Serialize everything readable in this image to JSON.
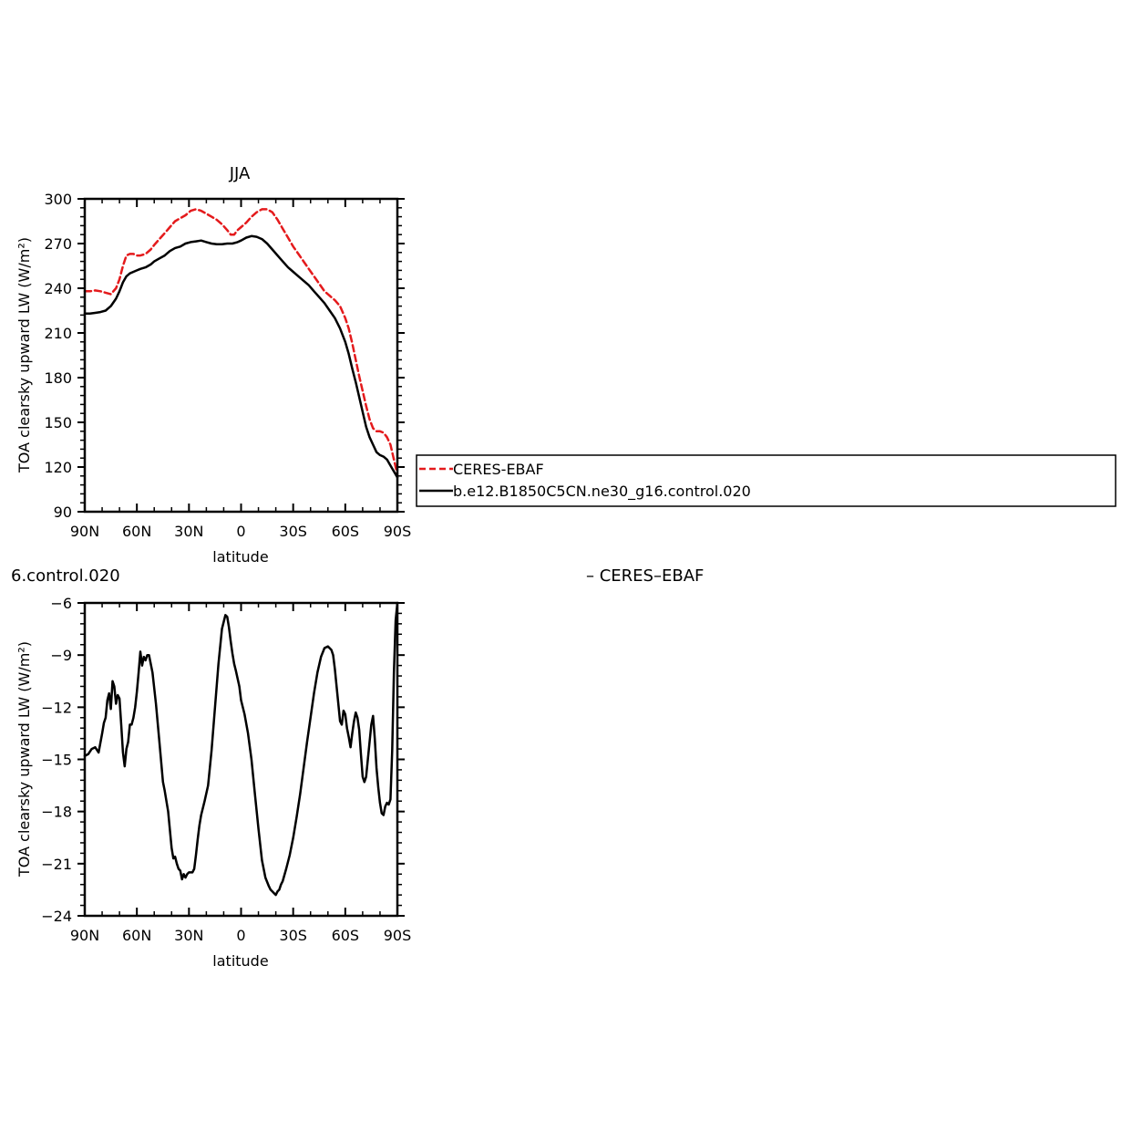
{
  "chart_data": [
    {
      "type": "line",
      "title": "JJA",
      "xlabel": "latitude",
      "ylabel": "TOA clearsky upward LW (W/m²)",
      "xlim": [
        90,
        -90
      ],
      "ylim": [
        90,
        300
      ],
      "x_ticks": [
        90,
        60,
        30,
        0,
        -30,
        -60,
        -90
      ],
      "x_tick_labels": [
        "90N",
        "60N",
        "30N",
        "0",
        "30S",
        "60S",
        "90S"
      ],
      "y_ticks": [
        90,
        120,
        150,
        180,
        210,
        240,
        270,
        300
      ],
      "y_tick_labels": [
        "90",
        "120",
        "150",
        "180",
        "210",
        "240",
        "270",
        "300"
      ],
      "legend": {
        "placement": "right",
        "entries": [
          {
            "label": "CERES-EBAF",
            "color": "#e41a1c",
            "dash": "dashed"
          },
          {
            "label": "b.e12.B1850C5CN.ne30_g16.control.020",
            "color": "#000000",
            "dash": "solid"
          }
        ]
      },
      "series": [
        {
          "name": "CERES-EBAF",
          "color": "#e41a1c",
          "dash": "dashed",
          "x": [
            90,
            87,
            84,
            81,
            78,
            75,
            72,
            70,
            68,
            66,
            64,
            62,
            60,
            58,
            55,
            52,
            50,
            47,
            44,
            41,
            38,
            35,
            32,
            29,
            26,
            23,
            20,
            17,
            14,
            11,
            8,
            6,
            4,
            2,
            0,
            -3,
            -6,
            -9,
            -12,
            -15,
            -18,
            -21,
            -24,
            -27,
            -30,
            -33,
            -36,
            -39,
            -42,
            -45,
            -48,
            -51,
            -54,
            -57,
            -60,
            -62,
            -64,
            -66,
            -68,
            -70,
            -72,
            -74,
            -76,
            -78,
            -80,
            -82,
            -84,
            -86,
            -88,
            -90
          ],
          "values": [
            238,
            238,
            238.5,
            238,
            237,
            236,
            240,
            246,
            255,
            262,
            263,
            263,
            262,
            262,
            263,
            266,
            269,
            273,
            277,
            281,
            285,
            287,
            289,
            292,
            293,
            292,
            290,
            288,
            286,
            283,
            279,
            276,
            276,
            279,
            281,
            284,
            288,
            291,
            293,
            293,
            291,
            286,
            280,
            274,
            268,
            263,
            258,
            253,
            248,
            243,
            238,
            235,
            232,
            228,
            220,
            213,
            203,
            192,
            181,
            171,
            161,
            152,
            146,
            144,
            144,
            143,
            140,
            135,
            125,
            115
          ]
        },
        {
          "name": "b.e12.B1850C5CN.ne30_g16.control.020",
          "color": "#000000",
          "dash": "solid",
          "x": [
            90,
            87,
            84,
            81,
            78,
            75,
            72,
            70,
            68,
            66,
            64,
            62,
            60,
            58,
            55,
            52,
            50,
            47,
            44,
            41,
            38,
            35,
            32,
            29,
            26,
            23,
            20,
            17,
            14,
            11,
            8,
            5,
            2,
            0,
            -3,
            -6,
            -9,
            -12,
            -15,
            -18,
            -21,
            -24,
            -27,
            -30,
            -33,
            -36,
            -39,
            -42,
            -45,
            -48,
            -51,
            -54,
            -57,
            -60,
            -62,
            -64,
            -66,
            -68,
            -70,
            -72,
            -74,
            -76,
            -78,
            -80,
            -82,
            -84,
            -86,
            -88,
            -90
          ],
          "values": [
            223,
            223,
            223.5,
            224,
            225,
            228,
            233,
            238,
            244,
            248,
            250,
            251,
            252,
            253,
            254,
            256,
            258,
            260,
            262,
            265,
            267,
            268,
            270,
            271,
            271.5,
            272,
            271,
            270,
            269.5,
            269.5,
            270,
            270,
            271,
            272,
            274,
            275,
            274.5,
            273,
            270,
            266,
            262,
            258,
            254,
            251,
            248,
            245,
            242,
            238,
            234,
            230,
            225,
            220,
            213,
            204,
            196,
            186,
            177,
            167,
            157,
            147,
            140,
            135,
            130,
            128,
            127,
            125,
            121,
            117,
            113
          ]
        }
      ]
    },
    {
      "type": "line",
      "title": "6.control.020",
      "subtitle": "– CERES–EBAF",
      "xlabel": "latitude",
      "ylabel": "TOA clearsky upward LW (W/m²)",
      "xlim": [
        90,
        -90
      ],
      "ylim": [
        -24,
        -6
      ],
      "x_ticks": [
        90,
        60,
        30,
        0,
        -30,
        -60,
        -90
      ],
      "x_tick_labels": [
        "90N",
        "60N",
        "30N",
        "0",
        "30S",
        "60S",
        "90S"
      ],
      "y_ticks": [
        -24,
        -21,
        -18,
        -15,
        -12,
        -9,
        -6
      ],
      "y_tick_labels": [
        "−24",
        "−21",
        "−18",
        "−15",
        "−12",
        "−9",
        "−6"
      ],
      "series": [
        {
          "color": "#000000",
          "dash": "solid",
          "x": [
            90,
            88,
            86,
            84,
            82,
            80,
            79,
            78,
            77,
            76,
            75,
            74,
            73,
            72,
            71,
            70,
            69,
            68,
            67,
            66,
            65,
            64,
            63,
            62,
            61,
            60,
            59,
            58,
            57,
            56,
            55,
            54,
            53,
            51,
            49,
            47,
            45,
            44,
            42,
            40,
            39,
            38,
            37,
            36,
            35,
            34,
            33,
            32,
            31,
            30,
            29,
            28,
            27,
            26,
            25,
            24,
            23,
            21,
            19,
            17,
            15,
            13,
            11,
            9,
            8,
            7,
            6,
            5,
            4,
            3,
            1,
            0,
            -2,
            -4,
            -6,
            -8,
            -10,
            -12,
            -14,
            -16,
            -17,
            -18,
            -19,
            -20,
            -21,
            -22,
            -23,
            -24,
            -26,
            -28,
            -30,
            -32,
            -34,
            -36,
            -38,
            -40,
            -42,
            -44,
            -46,
            -48,
            -50,
            -52,
            -53,
            -54,
            -55,
            -56,
            -57,
            -58,
            -59,
            -60,
            -61,
            -62,
            -63,
            -64,
            -65,
            -66,
            -67,
            -68,
            -69,
            -70,
            -71,
            -72,
            -73,
            -74,
            -75,
            -76,
            -77,
            -78,
            -79,
            -80,
            -81,
            -82,
            -83,
            -84,
            -85,
            -86,
            -87,
            -88,
            -89,
            -90
          ],
          "values": [
            -14.8,
            -14.7,
            -14.4,
            -14.3,
            -14.6,
            -13.5,
            -12.9,
            -12.6,
            -11.6,
            -11.2,
            -12.1,
            -10.5,
            -10.8,
            -11.8,
            -11.3,
            -11.5,
            -13.0,
            -14.6,
            -15.4,
            -14.4,
            -14.0,
            -13.0,
            -13.0,
            -12.6,
            -12.0,
            -11.1,
            -10.0,
            -8.8,
            -9.6,
            -9.1,
            -9.3,
            -9.0,
            -9.0,
            -10.0,
            -11.8,
            -14.0,
            -16.3,
            -16.8,
            -18.0,
            -20.1,
            -20.7,
            -20.6,
            -21.0,
            -21.3,
            -21.4,
            -21.9,
            -21.6,
            -21.8,
            -21.6,
            -21.5,
            -21.5,
            -21.5,
            -21.3,
            -20.5,
            -19.6,
            -18.8,
            -18.2,
            -17.4,
            -16.5,
            -14.5,
            -12.0,
            -9.5,
            -7.5,
            -6.7,
            -6.8,
            -7.4,
            -8.2,
            -8.9,
            -9.5,
            -9.9,
            -10.8,
            -11.6,
            -12.4,
            -13.5,
            -15.0,
            -17.0,
            -19.0,
            -20.8,
            -21.8,
            -22.3,
            -22.5,
            -22.6,
            -22.7,
            -22.8,
            -22.6,
            -22.5,
            -22.2,
            -22.0,
            -21.3,
            -20.5,
            -19.5,
            -18.3,
            -17.0,
            -15.5,
            -14.0,
            -12.6,
            -11.2,
            -10.0,
            -9.1,
            -8.6,
            -8.5,
            -8.7,
            -9.0,
            -9.8,
            -10.8,
            -11.8,
            -12.8,
            -13.0,
            -12.2,
            -12.4,
            -13.2,
            -13.7,
            -14.3,
            -13.5,
            -12.8,
            -12.3,
            -12.6,
            -13.3,
            -14.7,
            -16.0,
            -16.3,
            -16.0,
            -15.0,
            -14.0,
            -13.0,
            -12.5,
            -13.8,
            -15.5,
            -16.6,
            -17.5,
            -18.1,
            -18.2,
            -17.7,
            -17.5,
            -17.6,
            -17.3,
            -14.5,
            -10.0,
            -7.0,
            -6.0
          ]
        }
      ]
    }
  ]
}
